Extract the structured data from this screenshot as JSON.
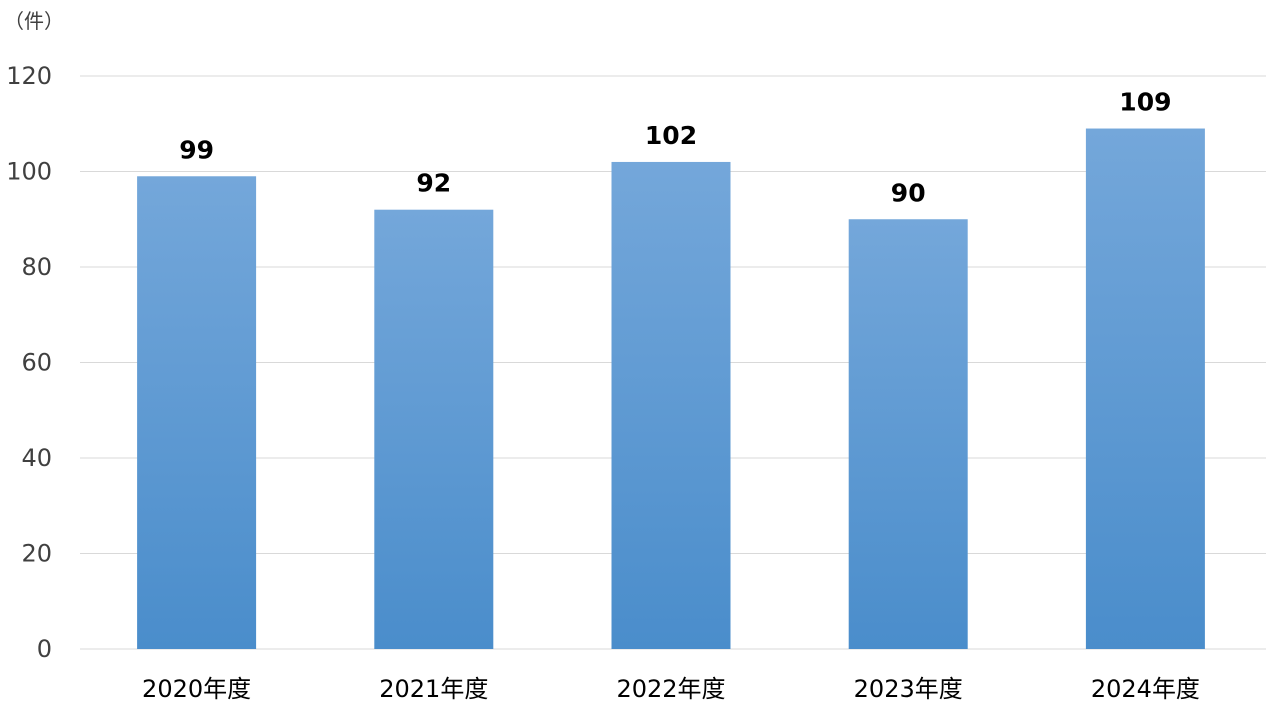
{
  "chart_data": {
    "type": "bar",
    "unit_label": "（件）",
    "categories": [
      "2020年度",
      "2021年度",
      "2022年度",
      "2023年度",
      "2024年度"
    ],
    "values": [
      99,
      92,
      102,
      90,
      109
    ],
    "ylim": [
      0,
      120
    ],
    "yticks": [
      0,
      20,
      40,
      60,
      80,
      100,
      120
    ],
    "grid": true,
    "legend": "none",
    "colors": {
      "bar_top": "#74a7da",
      "bar_bottom": "#4a8dcb",
      "gridline": "#d9d9d9"
    }
  }
}
